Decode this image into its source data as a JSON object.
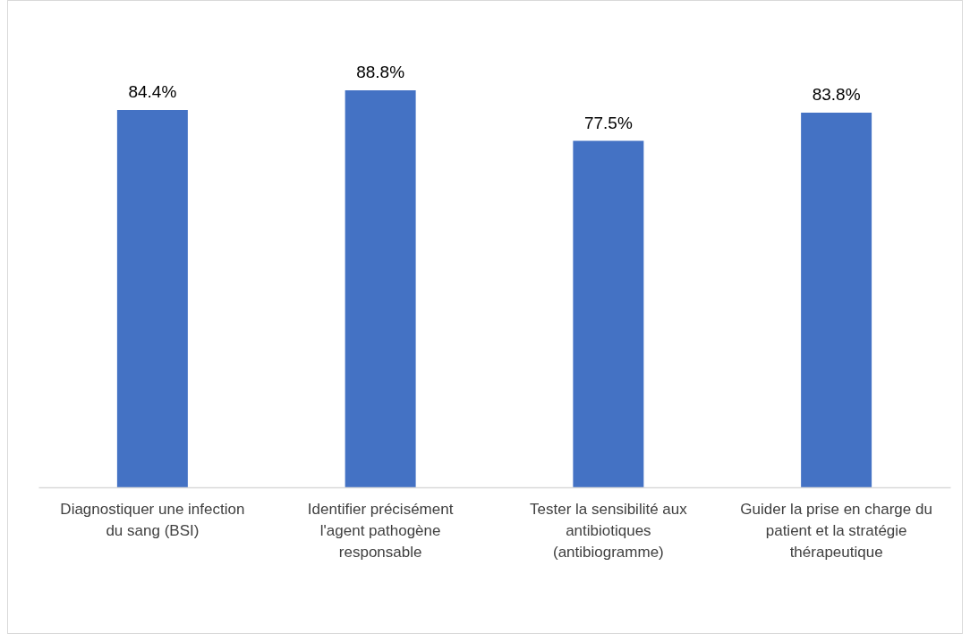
{
  "chart_data": {
    "type": "bar",
    "categories": [
      "Diagnostiquer une infection du sang (BSI)",
      "Identifier précisément l'agent pathogène responsable",
      "Tester la sensibilité aux antibiotiques (antibiogramme)",
      "Guider la prise en charge du patient et la stratégie thérapeutique"
    ],
    "values": [
      84.4,
      88.8,
      77.5,
      83.8
    ],
    "value_labels": [
      "84.4%",
      "88.8%",
      "77.5%",
      "83.8%"
    ],
    "color": "#4472c4",
    "tick_labels": "x"
  }
}
